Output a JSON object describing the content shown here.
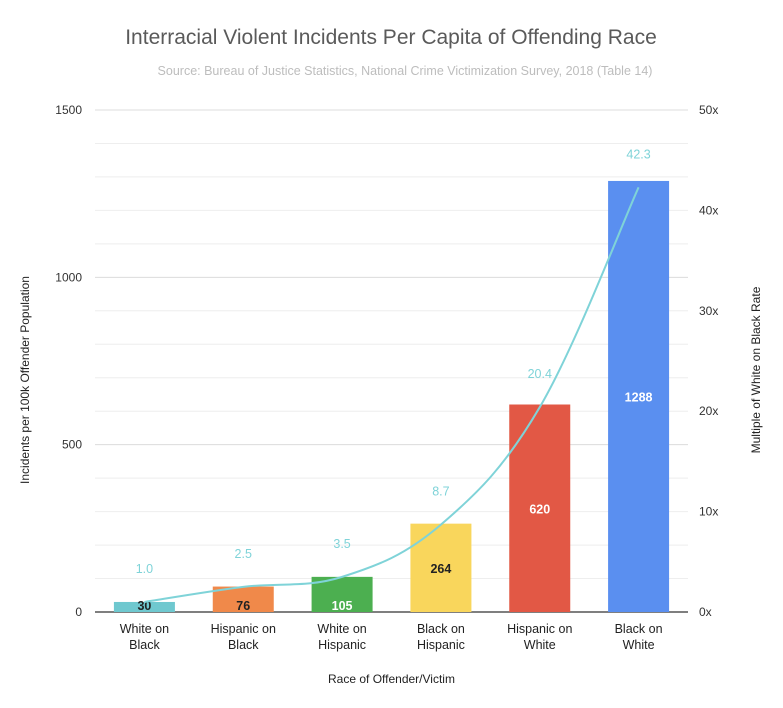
{
  "chart_data": {
    "type": "bar",
    "title": "Interracial Violent Incidents Per Capita of Offending Race",
    "subtitle": "Source: Bureau of Justice Statistics, National Crime Victimization Survey, 2018 (Table 14)",
    "xlabel": "Race of Offender/Victim",
    "ylabel": "Incidents per 100k Offender Population",
    "y2label": "Multiple of White on Black Rate",
    "ylim": [
      0,
      1500
    ],
    "y2lim": [
      0,
      50
    ],
    "yticks": [
      "0",
      "500",
      "1000",
      "1500"
    ],
    "y2ticks": [
      "0x",
      "10x",
      "20x",
      "30x",
      "40x",
      "50x"
    ],
    "categories": [
      [
        "White on",
        "Black"
      ],
      [
        "Hispanic on",
        "Black"
      ],
      [
        "White on",
        "Hispanic"
      ],
      [
        "Black on",
        "Hispanic"
      ],
      [
        "Hispanic on",
        "White"
      ],
      [
        "Black on",
        "White"
      ]
    ],
    "series": [
      {
        "name": "Incidents per 100k",
        "axis": "left",
        "values": [
          30,
          76,
          105,
          264,
          620,
          1288
        ],
        "colors": [
          "#6fc8cf",
          "#f0894a",
          "#4caf50",
          "#f9d65c",
          "#e25845",
          "#5a8ff0"
        ],
        "label_colors": [
          "#222222",
          "#222222",
          "#ffffff",
          "#222222",
          "#ffffff",
          "#ffffff"
        ]
      },
      {
        "name": "Multiple of White on Black Rate",
        "axis": "right",
        "type": "line",
        "values": [
          1.0,
          2.5,
          3.5,
          8.7,
          20.4,
          42.3
        ],
        "labels": [
          "1.0",
          "2.5",
          "3.5",
          "8.7",
          "20.4",
          "42.3"
        ],
        "color": "#7fd3d8"
      }
    ]
  }
}
